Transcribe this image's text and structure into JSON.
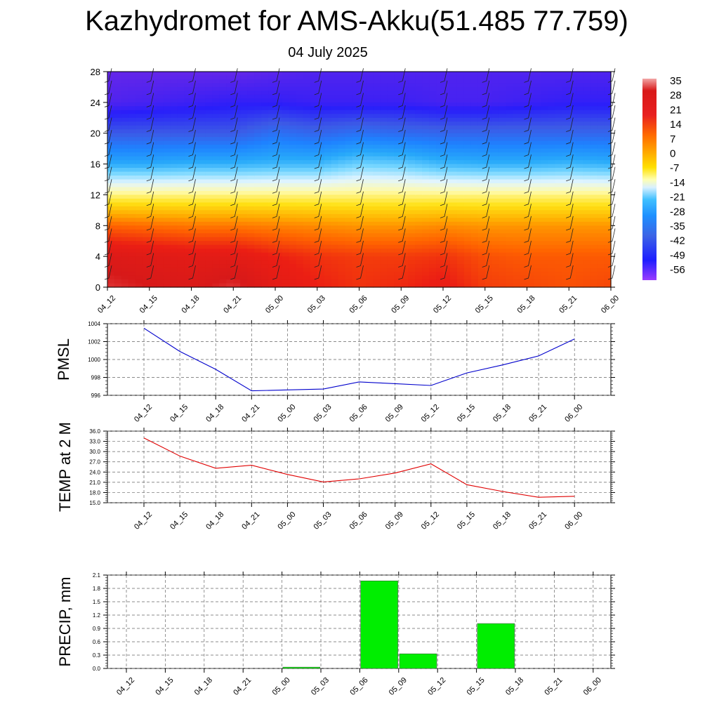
{
  "title": "Kazhydromet for AMS-Akku(51.485 77.759)",
  "subtitle": "04 July 2025",
  "colors": {
    "pmsl_line": "#0000cc",
    "temp_line": "#e00000",
    "precip_bar": "#00ee00"
  },
  "colorbar": {
    "labels": [
      "35",
      "28",
      "21",
      "14",
      "7",
      "0",
      "-7",
      "-14",
      "-21",
      "-28",
      "-35",
      "-42",
      "-49",
      "-56"
    ]
  },
  "chart_data": [
    {
      "type": "heatmap",
      "ylim": [
        0,
        28
      ],
      "yticks": [
        "0",
        "4",
        "8",
        "12",
        "16",
        "20",
        "24",
        "28"
      ],
      "categories": [
        "04_12",
        "04_15",
        "04_18",
        "04_21",
        "05_00",
        "05_03",
        "05_06",
        "05_09",
        "05_12",
        "05_15",
        "05_18",
        "05_21",
        "06_00"
      ],
      "levels": [
        0,
        4,
        8,
        12,
        16,
        20,
        24,
        28
      ],
      "values": [
        [
          30,
          28,
          27,
          30,
          24,
          21,
          19,
          20,
          22,
          18,
          17,
          16,
          17
        ],
        [
          26,
          25,
          24,
          24,
          21,
          19,
          18,
          18,
          19,
          16,
          15,
          15,
          15
        ],
        [
          14,
          13,
          12,
          12,
          11,
          10,
          9,
          9,
          10,
          9,
          9,
          9,
          9
        ],
        [
          -5,
          -5,
          -5,
          -5,
          -5,
          -5,
          -5,
          -5,
          -5,
          -5,
          -5,
          -5,
          -5
        ],
        [
          -28,
          -28,
          -27,
          -27,
          -26,
          -26,
          -22,
          -23,
          -26,
          -27,
          -27,
          -26,
          -27
        ],
        [
          -42,
          -42,
          -42,
          -42,
          -38,
          -40,
          -38,
          -39,
          -40,
          -40,
          -40,
          -40,
          -40
        ],
        [
          -53,
          -52,
          -51,
          -50,
          -50,
          -51,
          -51,
          -51,
          -52,
          -52,
          -51,
          -50,
          -50
        ],
        [
          -55,
          -55,
          -55,
          -55,
          -54,
          -53,
          -53,
          -53,
          -53,
          -53,
          -53,
          -53,
          -53
        ]
      ],
      "color_range": [
        -56,
        35
      ]
    },
    {
      "type": "line",
      "ylabel": "PMSL",
      "ylim": [
        996,
        1004
      ],
      "yticks": [
        "996",
        "998",
        "1000",
        "1002",
        "1004"
      ],
      "categories": [
        "04_12",
        "04_15",
        "04_18",
        "04_21",
        "05_00",
        "05_03",
        "05_06",
        "05_09",
        "05_12",
        "05_15",
        "05_18",
        "05_21",
        "06_00"
      ],
      "values": [
        1003.5,
        1000.9,
        998.9,
        996.5,
        996.6,
        996.7,
        997.5,
        997.3,
        997.1,
        998.5,
        999.4,
        1000.4,
        1002.3
      ]
    },
    {
      "type": "line",
      "ylabel": "TEMP at 2 M",
      "ylim": [
        15,
        36
      ],
      "yticks": [
        "15.0",
        "18.0",
        "21.0",
        "24.0",
        "27.0",
        "30.0",
        "33.0",
        "36.0"
      ],
      "categories": [
        "04_12",
        "04_15",
        "04_18",
        "04_21",
        "05_00",
        "05_03",
        "05_06",
        "05_09",
        "05_12",
        "05_15",
        "05_18",
        "05_21",
        "06_00"
      ],
      "values": [
        34.0,
        28.7,
        25.1,
        26.0,
        23.3,
        21.1,
        22.0,
        23.7,
        26.4,
        20.3,
        18.3,
        16.6,
        16.9
      ]
    },
    {
      "type": "bar",
      "ylabel": "PRECIP, mm",
      "ylim": [
        0,
        2.1
      ],
      "yticks": [
        "0.0",
        "0.3",
        "0.6",
        "0.9",
        "1.2",
        "1.5",
        "1.8",
        "2.1"
      ],
      "categories": [
        "04_12",
        "04_15",
        "04_18",
        "04_21",
        "05_00",
        "05_03",
        "05_06",
        "05_09",
        "05_12",
        "05_15",
        "05_18",
        "05_21",
        "06_00"
      ],
      "values": [
        0,
        0,
        0,
        0,
        0.03,
        0,
        1.97,
        0.33,
        0,
        1.01,
        0,
        0,
        0
      ]
    }
  ]
}
